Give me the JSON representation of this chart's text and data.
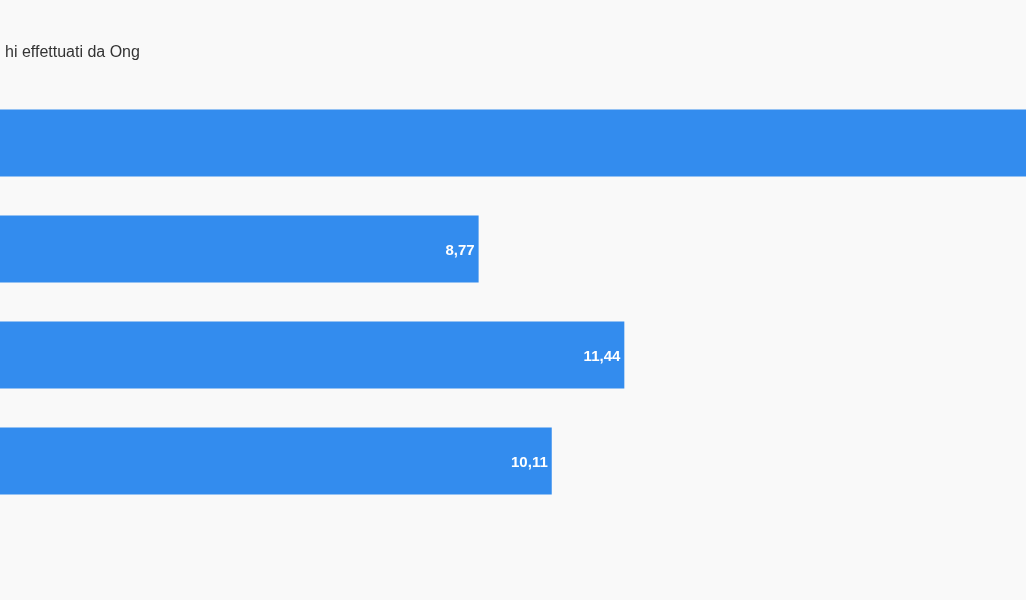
{
  "chart_data": {
    "type": "bar",
    "orientation": "horizontal",
    "title": "hi effettuati da Ong",
    "categories": [
      null,
      null,
      null,
      null
    ],
    "values": [
      18.8,
      8.77,
      11.44,
      10.11
    ],
    "value_labels": [
      null,
      "8,77",
      "11,44",
      "10,11"
    ],
    "color": "#338cee",
    "xlim": [
      0,
      18.8
    ]
  }
}
